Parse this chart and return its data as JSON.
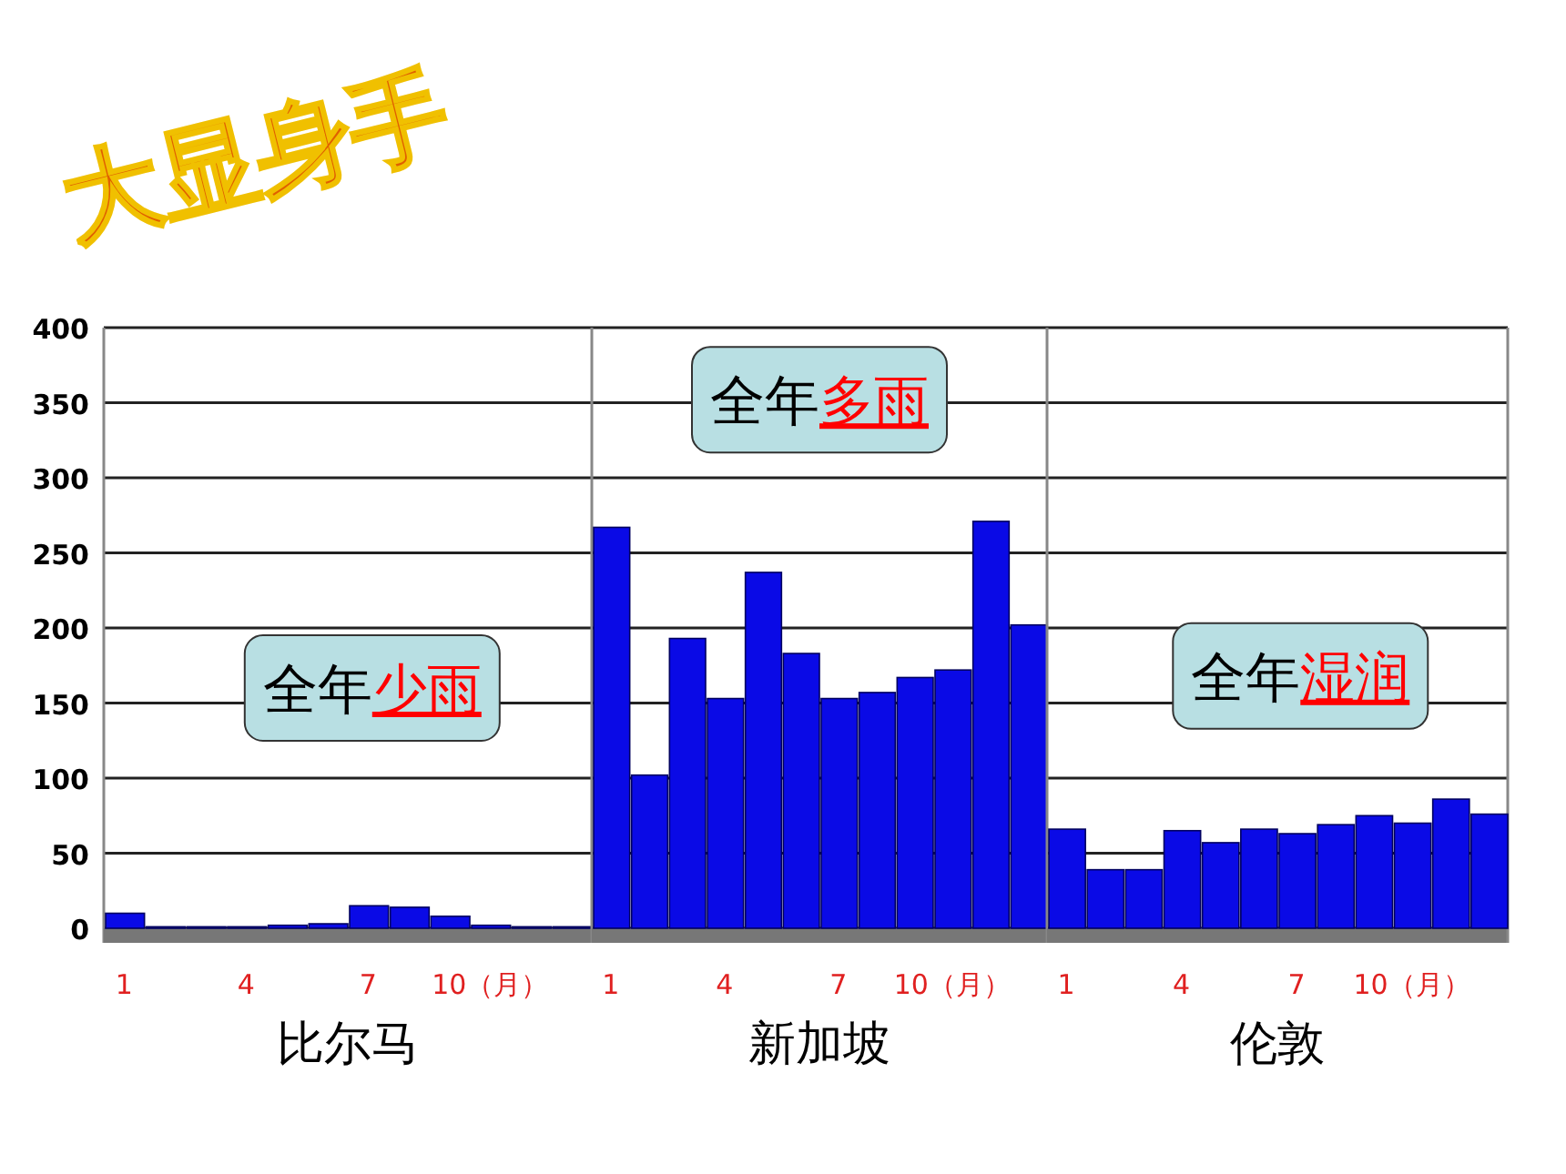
{
  "chart_data": [
    {
      "type": "bar",
      "title": "大显身手",
      "xlabel": "比尔马",
      "categories": [
        "1",
        null,
        null,
        "4",
        null,
        null,
        "7",
        null,
        null,
        "10（月）",
        null,
        null
      ],
      "values": [
        10,
        1,
        1,
        1,
        2,
        3,
        15,
        14,
        8,
        2,
        1,
        1
      ],
      "color": "#0a0ae6",
      "ylim": [
        0,
        400
      ],
      "yticks": [
        0,
        50,
        100,
        150,
        200,
        250,
        300,
        350,
        400
      ],
      "grid": "y",
      "annotations": [
        "全年少雨"
      ]
    },
    {
      "type": "bar",
      "xlabel": "新加坡",
      "categories": [
        "1",
        null,
        null,
        "4",
        null,
        null,
        "7",
        null,
        null,
        "10（月）",
        null,
        null
      ],
      "values": [
        267,
        102,
        193,
        153,
        237,
        183,
        153,
        157,
        167,
        172,
        271,
        202
      ],
      "color": "#0a0ae6",
      "ylim": [
        0,
        400
      ],
      "yticks": [
        0,
        50,
        100,
        150,
        200,
        250,
        300,
        350,
        400
      ],
      "grid": "y",
      "tick_labels": "x",
      "annotations": [
        "全年多雨"
      ]
    },
    {
      "type": "bar",
      "xlabel": "伦敦",
      "categories": [
        "1",
        null,
        null,
        "4",
        null,
        null,
        "7",
        null,
        null,
        "10（月）",
        null,
        null
      ],
      "values": [
        66,
        39,
        39,
        65,
        57,
        66,
        63,
        69,
        75,
        70,
        86,
        76
      ],
      "color": "#0a0ae6",
      "ylim": [
        0,
        400
      ],
      "yticks": [
        0,
        50,
        100,
        150,
        200,
        250,
        300,
        350,
        400
      ],
      "grid": "y",
      "tick_labels": "x",
      "annotations": [
        "全年湿润"
      ]
    }
  ]
}
